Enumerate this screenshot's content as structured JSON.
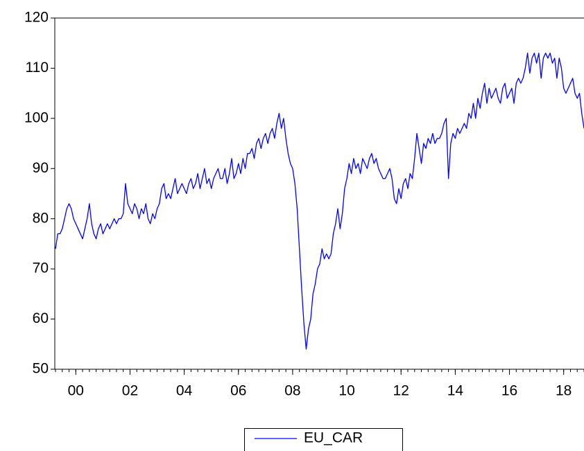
{
  "chart_data": {
    "type": "line",
    "categories": [
      null,
      null,
      null,
      null,
      null,
      null,
      null,
      null,
      null,
      "00",
      null,
      null,
      null,
      null,
      null,
      null,
      null,
      null,
      null,
      null,
      null,
      null,
      null,
      null,
      null,
      null,
      null,
      null,
      null,
      null,
      null,
      null,
      null,
      "02",
      null,
      null,
      null,
      null,
      null,
      null,
      null,
      null,
      null,
      null,
      null,
      null,
      null,
      null,
      null,
      null,
      null,
      null,
      null,
      null,
      null,
      null,
      null,
      "04",
      null,
      null,
      null,
      null,
      null,
      null,
      null,
      null,
      null,
      null,
      null,
      null,
      null,
      null,
      null,
      null,
      null,
      null,
      null,
      null,
      null,
      null,
      null,
      "06",
      null,
      null,
      null,
      null,
      null,
      null,
      null,
      null,
      null,
      null,
      null,
      null,
      null,
      null,
      null,
      null,
      null,
      null,
      null,
      null,
      null,
      null,
      null,
      "08",
      null,
      null,
      null,
      null,
      null,
      null,
      null,
      null,
      null,
      null,
      null,
      null,
      null,
      null,
      null,
      null,
      null,
      null,
      null,
      null,
      null,
      null,
      null,
      "10",
      null,
      null,
      null,
      null,
      null,
      null,
      null,
      null,
      null,
      null,
      null,
      null,
      null,
      null,
      null,
      null,
      null,
      null,
      null,
      null,
      null,
      null,
      null,
      "12",
      null,
      null,
      null,
      null,
      null,
      null,
      null,
      null,
      null,
      null,
      null,
      null,
      null,
      null,
      null,
      null,
      null,
      null,
      null,
      null,
      null,
      null,
      null,
      "14",
      null,
      null,
      null,
      null,
      null,
      null,
      null,
      null,
      null,
      null,
      null,
      null,
      null,
      null,
      null,
      null,
      null,
      null,
      null,
      null,
      null,
      null,
      null,
      "16",
      null,
      null,
      null,
      null,
      null,
      null,
      null,
      null,
      null,
      null,
      null,
      null,
      null,
      null,
      null,
      null,
      null,
      null,
      null,
      null,
      null,
      null,
      null,
      "18",
      null,
      null,
      null,
      null,
      null,
      null,
      null,
      null,
      null
    ],
    "series": [
      {
        "name": "EU_CAR",
        "color": "#0000ff",
        "values": [
          74,
          77,
          77,
          78,
          80,
          82,
          83,
          82,
          80,
          79,
          78,
          77,
          76,
          78,
          80,
          83,
          79,
          77,
          76,
          78,
          79,
          77,
          78,
          79,
          78,
          79,
          80,
          79,
          80,
          80,
          81,
          87,
          83,
          82,
          81,
          83,
          82,
          80,
          82,
          81,
          83,
          80,
          79,
          81,
          80,
          82,
          83,
          86,
          87,
          84,
          85,
          84,
          86,
          88,
          85,
          86,
          87,
          86,
          85,
          87,
          88,
          86,
          87,
          89,
          86,
          88,
          90,
          87,
          88,
          86,
          88,
          89,
          90,
          88,
          88,
          90,
          87,
          89,
          92,
          88,
          89,
          91,
          89,
          92,
          90,
          93,
          93,
          94,
          92,
          95,
          96,
          94,
          96,
          97,
          95,
          97,
          98,
          96,
          99,
          101,
          98,
          100,
          96,
          93,
          91,
          90,
          87,
          82,
          74,
          66,
          59,
          54,
          58,
          60,
          65,
          67,
          70,
          71,
          74,
          72,
          73,
          72,
          73,
          77,
          79,
          82,
          78,
          81,
          86,
          88,
          91,
          89,
          92,
          90,
          91,
          89,
          92,
          91,
          90,
          92,
          93,
          91,
          92,
          90,
          89,
          88,
          88,
          89,
          90,
          88,
          84,
          83,
          86,
          84,
          87,
          88,
          86,
          89,
          88,
          92,
          97,
          94,
          91,
          95,
          94,
          96,
          95,
          97,
          95,
          96,
          96,
          97,
          99,
          100,
          88,
          95,
          97,
          96,
          98,
          97,
          98,
          99,
          98,
          101,
          100,
          103,
          100,
          104,
          102,
          105,
          107,
          103,
          106,
          104,
          105,
          106,
          104,
          103,
          106,
          107,
          104,
          105,
          106,
          103,
          107,
          108,
          107,
          108,
          110,
          113,
          109,
          112,
          113,
          111,
          113,
          108,
          112,
          113,
          112,
          113,
          111,
          112,
          108,
          112,
          110,
          106,
          105,
          106,
          107,
          108,
          105,
          104,
          105,
          101,
          98
        ]
      }
    ],
    "ylim": [
      50,
      120
    ],
    "yticks": [
      50,
      60,
      70,
      80,
      90,
      100,
      110,
      120
    ],
    "legend": "bottom"
  }
}
